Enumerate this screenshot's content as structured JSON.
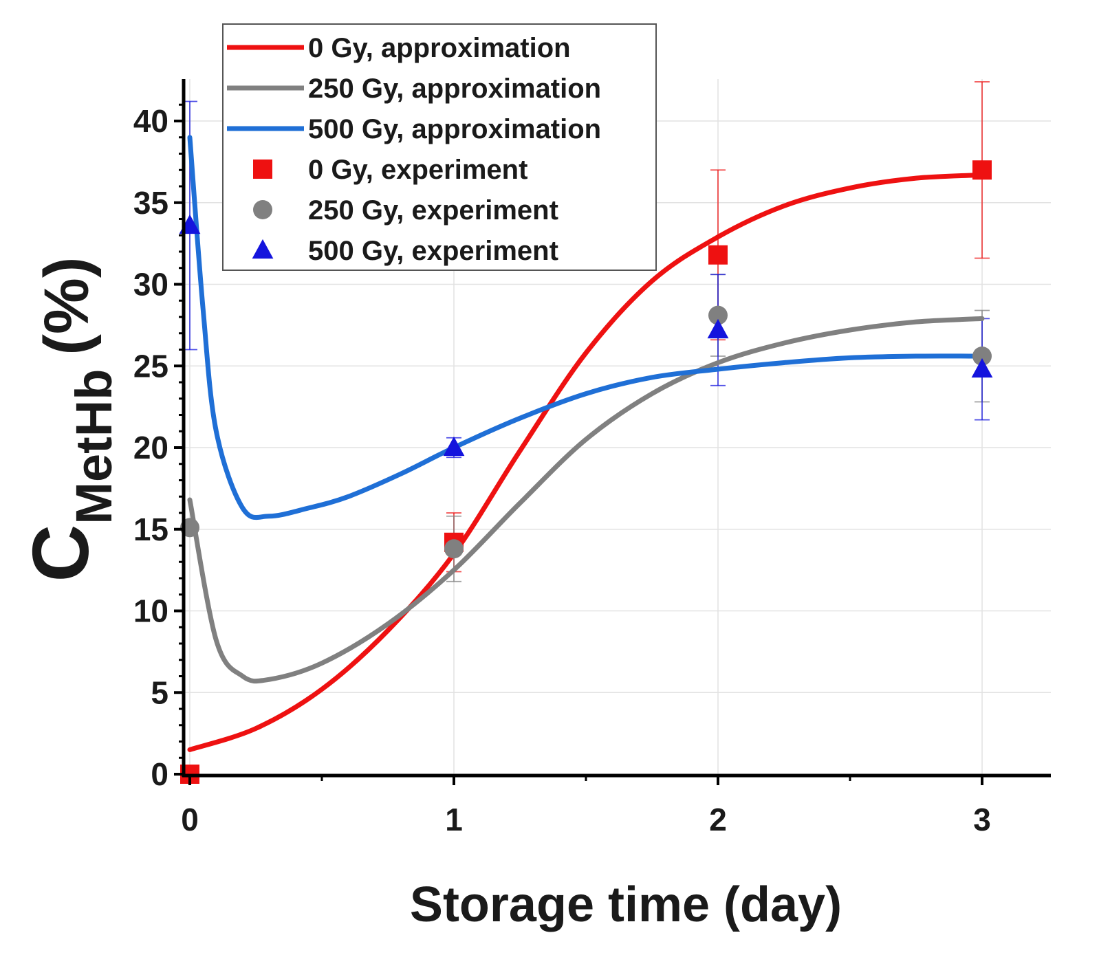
{
  "chart_data": {
    "type": "line",
    "title": "",
    "xlabel": "Storage time (day)",
    "ylabel_main": "C",
    "ylabel_sub": "MetHb",
    "ylabel_unit": "(%)",
    "xlim": [
      0,
      3.3
    ],
    "ylim": [
      0,
      42.5
    ],
    "xticks": [
      0,
      1,
      2,
      3
    ],
    "yticks": [
      0,
      5,
      10,
      15,
      20,
      25,
      30,
      35,
      40
    ],
    "grid": true,
    "legend_position": "top-left",
    "series": [
      {
        "name": "0 Gy, approximation",
        "kind": "line",
        "color": "#ee1111",
        "x": [
          0,
          0.25,
          0.5,
          0.75,
          1.0,
          1.25,
          1.5,
          1.75,
          2.0,
          2.25,
          2.5,
          2.75,
          3.0
        ],
        "y": [
          1.5,
          2.8,
          5.2,
          8.8,
          13.5,
          19.8,
          25.8,
          30.2,
          32.9,
          34.8,
          35.9,
          36.5,
          36.7
        ]
      },
      {
        "name": "250 Gy, approximation",
        "kind": "line",
        "color": "#808080",
        "x": [
          0,
          0.1,
          0.2,
          0.3,
          0.5,
          0.75,
          1.0,
          1.25,
          1.5,
          1.75,
          2.0,
          2.25,
          2.5,
          2.75,
          3.0
        ],
        "y": [
          16.8,
          8.2,
          6.0,
          5.8,
          6.8,
          9.2,
          12.5,
          16.6,
          20.5,
          23.3,
          25.2,
          26.4,
          27.2,
          27.7,
          27.9
        ]
      },
      {
        "name": "500 Gy, approximation",
        "kind": "line",
        "color": "#1f6fd6",
        "x": [
          0,
          0.05,
          0.1,
          0.2,
          0.3,
          0.45,
          0.6,
          0.8,
          1.0,
          1.25,
          1.5,
          1.75,
          2.0,
          2.25,
          2.5,
          2.75,
          3.0
        ],
        "y": [
          39.0,
          28.5,
          21.0,
          16.3,
          15.8,
          16.3,
          17.0,
          18.4,
          20.0,
          21.8,
          23.3,
          24.3,
          24.8,
          25.2,
          25.5,
          25.6,
          25.6
        ]
      },
      {
        "name": "0 Gy, experiment",
        "kind": "scatter",
        "marker": "square",
        "color": "#ee1111",
        "x": [
          0,
          1,
          2,
          3
        ],
        "y": [
          0,
          14.2,
          31.8,
          37.0
        ],
        "err": [
          0,
          1.8,
          5.2,
          5.4
        ]
      },
      {
        "name": "250 Gy, experiment",
        "kind": "scatter",
        "marker": "circle",
        "color": "#808080",
        "x": [
          0,
          1,
          2,
          3
        ],
        "y": [
          15.1,
          13.8,
          28.1,
          25.6
        ],
        "err": [
          0,
          2.0,
          2.5,
          2.8
        ]
      },
      {
        "name": "500 Gy, experiment",
        "kind": "scatter",
        "marker": "triangle",
        "color": "#1414dd",
        "x": [
          0,
          1,
          2,
          3
        ],
        "y": [
          33.6,
          20.0,
          27.2,
          24.8
        ],
        "err": [
          7.6,
          0.6,
          3.4,
          3.1
        ]
      }
    ]
  }
}
